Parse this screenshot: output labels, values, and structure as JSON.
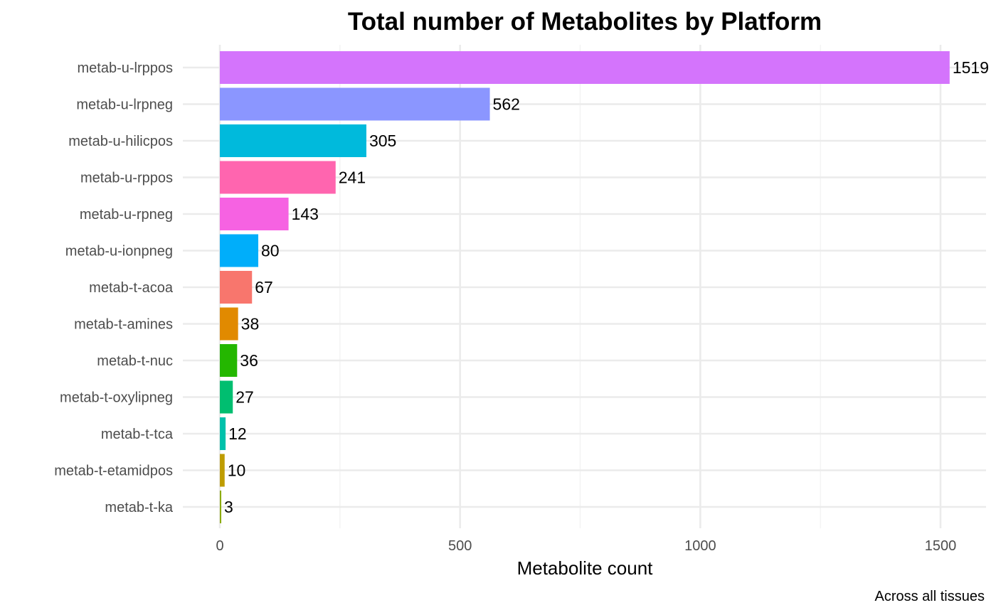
{
  "chart_data": {
    "type": "bar",
    "orientation": "horizontal",
    "title": "Total number of Metabolites by Platform",
    "xlabel": "Metabolite count",
    "ylabel": "",
    "caption": "Across all tissues",
    "xlim": [
      0,
      1540
    ],
    "x_ticks": [
      0,
      500,
      1000,
      1500
    ],
    "x_tick_labels": [
      "0",
      "500",
      "1000",
      "1500"
    ],
    "grid": true,
    "legend": "none",
    "categories": [
      "metab-u-lrppos",
      "metab-u-lrpneg",
      "metab-u-hilicpos",
      "metab-u-rppos",
      "metab-u-rpneg",
      "metab-u-ionpneg",
      "metab-t-acoa",
      "metab-t-amines",
      "metab-t-nuc",
      "metab-t-oxylipneg",
      "metab-t-tca",
      "metab-t-etamidpos",
      "metab-t-ka"
    ],
    "values": [
      1519,
      562,
      305,
      241,
      143,
      80,
      67,
      38,
      36,
      27,
      12,
      10,
      3
    ],
    "value_labels": [
      "1519",
      "562",
      "305",
      "241",
      "143",
      "80",
      "67",
      "38",
      "36",
      "27",
      "12",
      "10",
      "3"
    ],
    "colors": [
      "#D474FC",
      "#8B96FF",
      "#00BADC",
      "#FF65AF",
      "#F662E2",
      "#00AEFA",
      "#F8766D",
      "#E18A00",
      "#24B700",
      "#00BE70",
      "#00C1AB",
      "#BE9C00",
      "#8CAB00"
    ]
  }
}
